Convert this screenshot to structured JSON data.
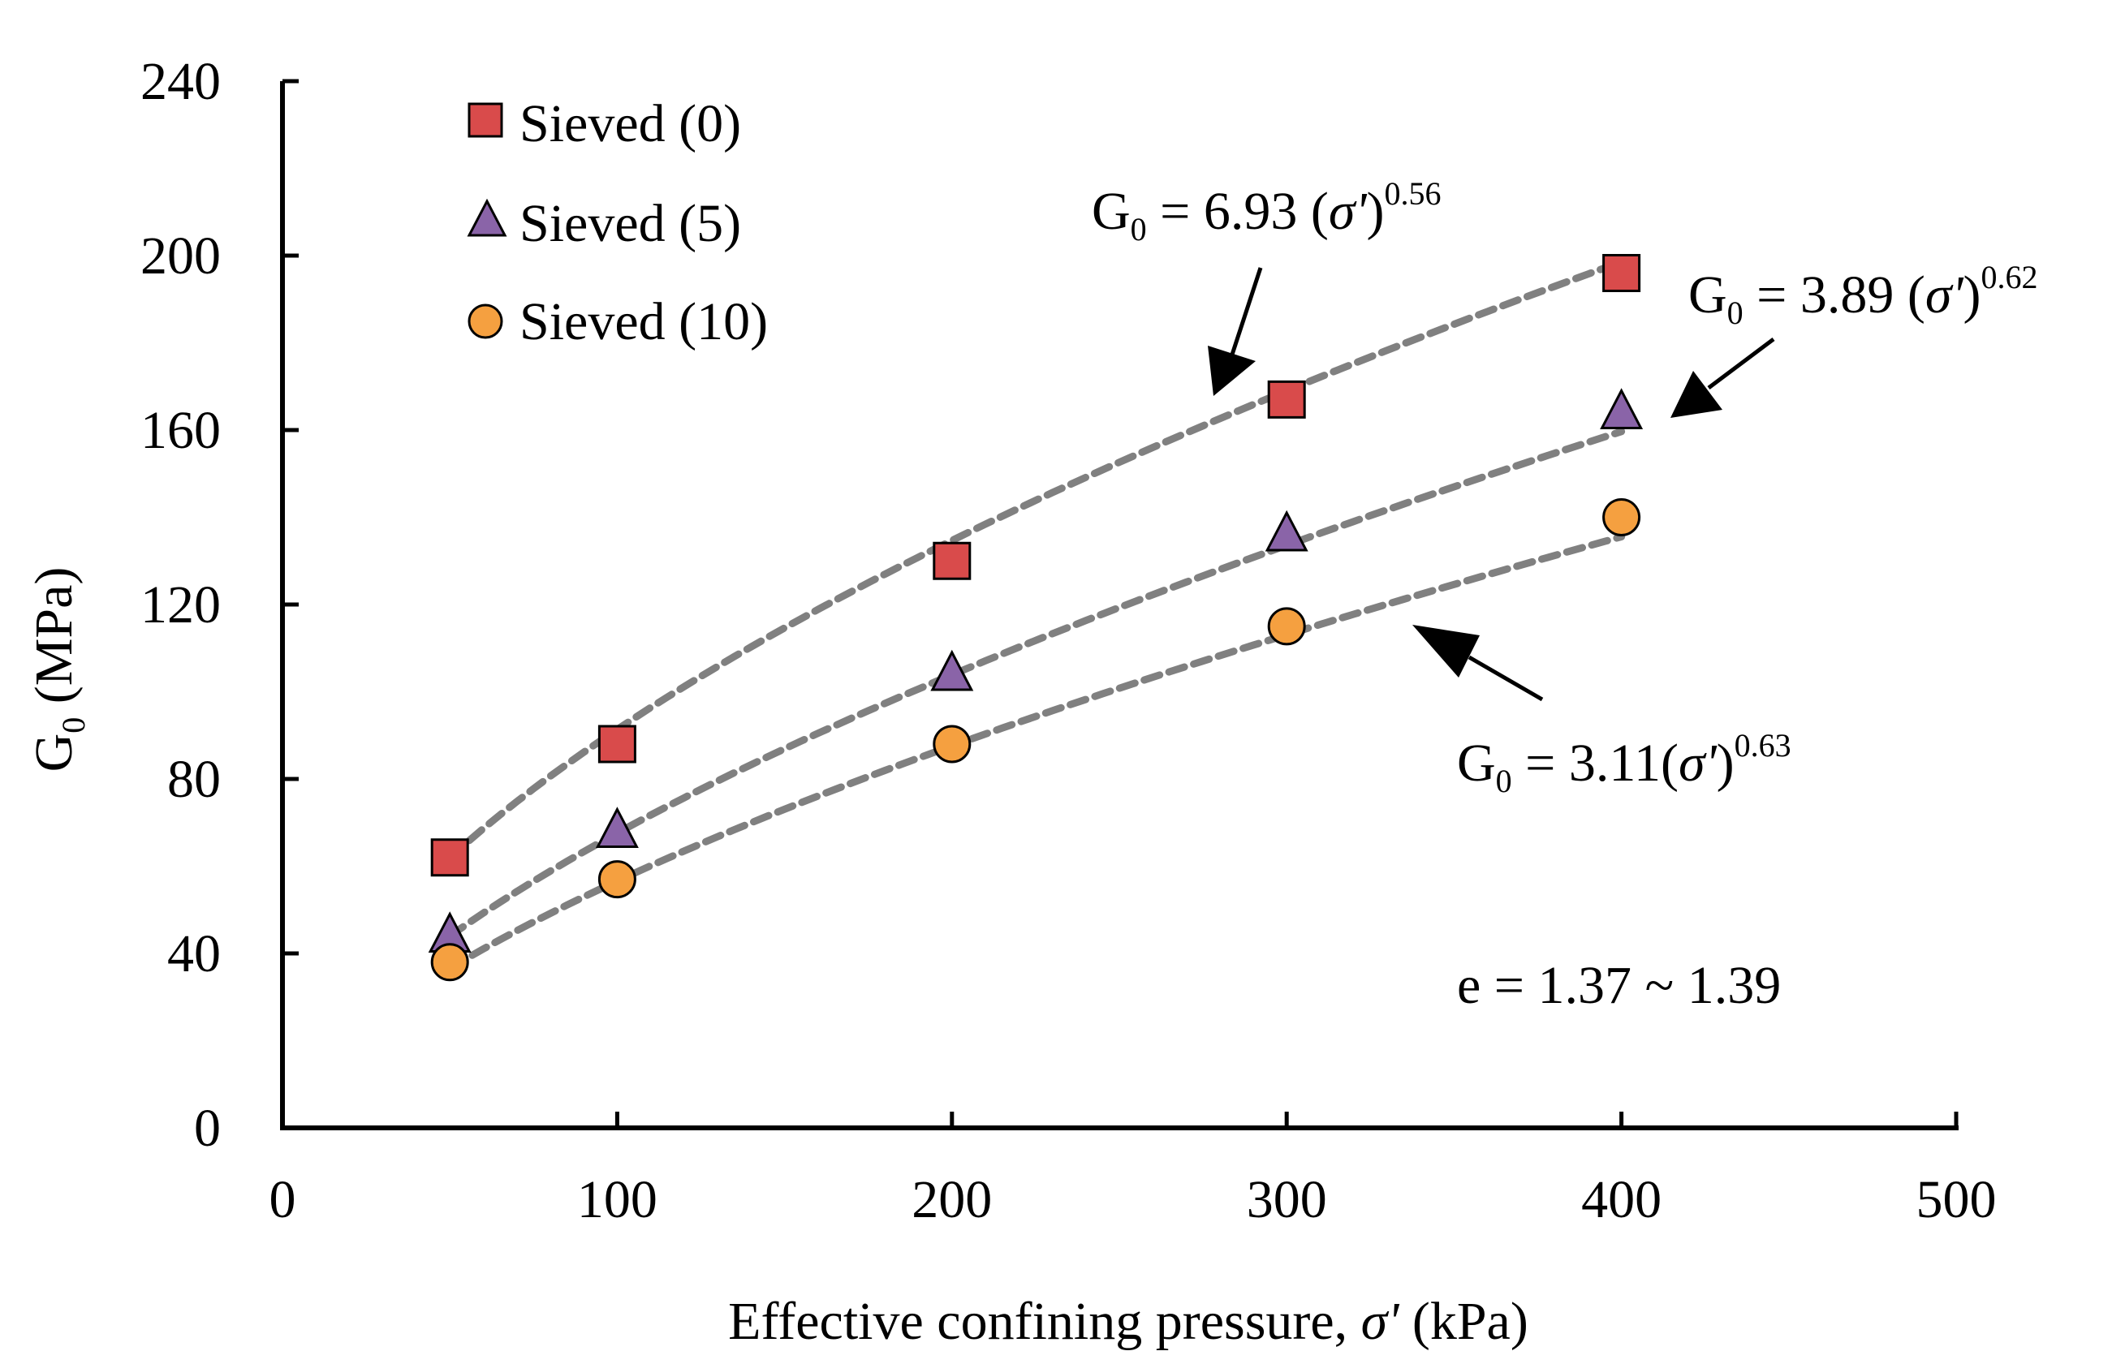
{
  "chart_data": {
    "type": "scatter",
    "title": "",
    "xlabel_prefix": "Effective confining pressure, ",
    "xlabel_symbol": "σ'",
    "xlabel_suffix": " (kPa)",
    "ylabel_main": "G",
    "ylabel_sub": "0",
    "ylabel_suffix": " (MPa)",
    "xlim": [
      0,
      500
    ],
    "ylim": [
      0,
      240
    ],
    "x_ticks": [
      "0",
      "100",
      "200",
      "300",
      "400",
      "500"
    ],
    "y_ticks": [
      "0",
      "40",
      "80",
      "120",
      "160",
      "200",
      "240"
    ],
    "grid": false,
    "legend_position": "top-left",
    "series": [
      {
        "name": "Sieved (0)",
        "marker": "square",
        "color": "#d94b4b",
        "x": [
          50,
          100,
          200,
          300,
          400
        ],
        "y": [
          62,
          88,
          130,
          167,
          196
        ],
        "fit": {
          "a": 6.93,
          "b": 0.56
        }
      },
      {
        "name": "Sieved (5)",
        "marker": "triangle",
        "color": "#8a64a8",
        "x": [
          50,
          100,
          200,
          300,
          400
        ],
        "y": [
          44,
          68,
          104,
          136,
          164
        ],
        "fit": {
          "a": 3.89,
          "b": 0.62
        }
      },
      {
        "name": "Sieved (10)",
        "marker": "circle",
        "color": "#f5a040",
        "x": [
          50,
          100,
          200,
          300,
          400
        ],
        "y": [
          38,
          57,
          88,
          115,
          140
        ],
        "fit": {
          "a": 3.11,
          "b": 0.63
        }
      }
    ],
    "annotations": [
      {
        "id": "eq0",
        "prefix": "G",
        "sub": "0",
        "body": " = 6.93 (",
        "sym": "σ'",
        "close": ")",
        "exp": "0.56"
      },
      {
        "id": "eq5",
        "prefix": "G",
        "sub": "0",
        "body": " = 3.89 (",
        "sym": "σ'",
        "close": ")",
        "exp": "0.62"
      },
      {
        "id": "eq10",
        "prefix": "G",
        "sub": "0",
        "body": " = 3.11(",
        "sym": "σ'",
        "close": ")",
        "exp": "0.63"
      },
      {
        "id": "void",
        "text": "e = 1.37 ~ 1.39"
      }
    ],
    "fit_line_color": "#808080"
  }
}
